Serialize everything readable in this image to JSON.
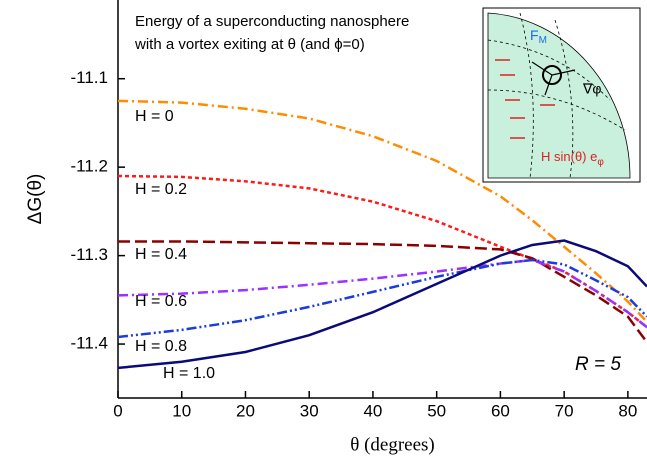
{
  "chart_data": {
    "type": "line",
    "title": [
      "Energy of a superconducting nanosphere",
      "with a vortex exiting at θ (and ϕ=0)"
    ],
    "x_label": "θ (degrees)",
    "y_label": "ΔG(θ)",
    "annotation": "R = 5",
    "x": [
      0,
      10,
      20,
      30,
      40,
      50,
      60,
      65,
      70,
      75,
      80,
      83
    ],
    "xlim": [
      0,
      83
    ],
    "xticks": [
      0,
      10,
      20,
      30,
      40,
      50,
      60,
      70,
      80
    ],
    "ylim": [
      -11.461,
      -11.011
    ],
    "yticks": [
      -11.1,
      -11.2,
      -11.3,
      -11.4
    ],
    "series": [
      {
        "name": "H = 0",
        "color": "#ff8c00",
        "style": "dash-dot",
        "values": [
          -11.125,
          -11.127,
          -11.134,
          -11.145,
          -11.165,
          -11.193,
          -11.233,
          -11.26,
          -11.29,
          -11.32,
          -11.352,
          -11.375
        ]
      },
      {
        "name": "H = 0.2",
        "color": "#ff1a1a",
        "style": "dot",
        "values": [
          -11.21,
          -11.211,
          -11.216,
          -11.224,
          -11.239,
          -11.261,
          -11.29,
          -11.304,
          -11.318,
          -11.34,
          -11.364,
          -11.381
        ]
      },
      {
        "name": "H = 0.4",
        "color": "#8b0000",
        "style": "dash",
        "values": [
          -11.284,
          -11.284,
          -11.285,
          -11.286,
          -11.287,
          -11.289,
          -11.293,
          -11.303,
          -11.324,
          -11.345,
          -11.369,
          -11.398
        ]
      },
      {
        "name": "H = 0.6",
        "color": "#9b30ff",
        "style": "dash-dot",
        "values": [
          -11.345,
          -11.343,
          -11.339,
          -11.333,
          -11.326,
          -11.318,
          -11.309,
          -11.305,
          -11.318,
          -11.34,
          -11.364,
          -11.381
        ]
      },
      {
        "name": "H = 0.8",
        "color": "#1a3cdc",
        "style": "dash-dot-dot",
        "values": [
          -11.392,
          -11.384,
          -11.373,
          -11.358,
          -11.341,
          -11.324,
          -11.309,
          -11.305,
          -11.31,
          -11.328,
          -11.347,
          -11.369
        ]
      },
      {
        "name": "H = 1.0",
        "color": "#0a0a78",
        "style": "solid",
        "values": [
          -11.427,
          -11.42,
          -11.409,
          -11.39,
          -11.364,
          -11.332,
          -11.3,
          -11.288,
          -11.283,
          -11.295,
          -11.312,
          -11.335
        ]
      }
    ],
    "inset": {
      "force_label": "F",
      "force_subscript": "M",
      "gradient_label": "∇φ",
      "field_label": "H sin(θ) e",
      "field_subscript": "φ"
    }
  }
}
